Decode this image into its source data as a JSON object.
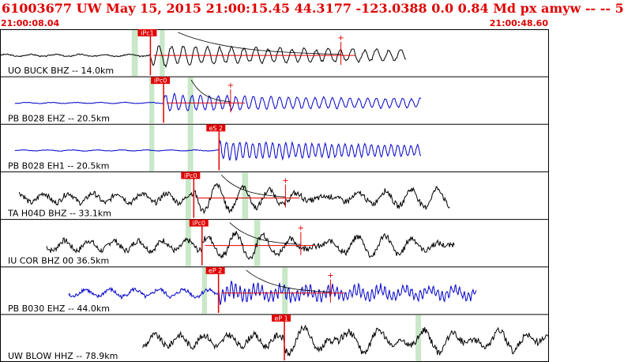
{
  "header": {
    "title": "61003677 UW May 15, 2015 21:00:15.45    44.3177 -123.0388  0.0 0.84 Md px amyw -- --   5",
    "time_left": "21:00:08.04",
    "time_right": "21:00:48.60"
  },
  "colors": {
    "text_red": "#e00000",
    "pick_red": "#e00000",
    "trace_black": "#000000",
    "trace_blue": "#0000cc",
    "window_green": "#c8e8c8"
  },
  "traces": [
    {
      "label": "UO BUCK BHZ -- 14.0km",
      "color": "#000000",
      "pick_label": "iPc1",
      "pick_t": 0.274,
      "green_windows": [
        [
          0.24,
          0.251
        ],
        [
          0.291,
          0.3
        ]
      ],
      "noise_amp": 0.06,
      "signal_amp": 0.42,
      "signal_period": 0.022,
      "coda_pick_t": 0.621,
      "start_t": 0.0,
      "end_t": 0.74
    },
    {
      "label": "PB B028 EHZ -- 20.5km",
      "color": "#0000cc",
      "pick_label": "iPc0",
      "pick_t": 0.298,
      "green_windows": [
        [
          0.272,
          0.281
        ],
        [
          0.342,
          0.352
        ]
      ],
      "noise_amp": 0.03,
      "signal_amp": 0.35,
      "signal_period": 0.016,
      "coda_pick_t": 0.42,
      "start_t": 0.027,
      "end_t": 0.768
    },
    {
      "label": "PB B028 EH1 -- 20.5km",
      "color": "#0000cc",
      "pick_label": "eS 2",
      "pick_t": 0.399,
      "green_windows": [
        [
          0.272,
          0.281
        ],
        [
          0.342,
          0.352
        ]
      ],
      "noise_amp": 0.03,
      "signal_amp": 0.38,
      "signal_period": 0.012,
      "coda_pick_t": null,
      "start_t": 0.027,
      "end_t": 0.768
    },
    {
      "label": "TA H04D BHZ -- 33.1km",
      "color": "#000000",
      "pick_label": "iPc0",
      "pick_t": 0.353,
      "green_windows": [
        [
          0.338,
          0.348
        ],
        [
          0.441,
          0.452
        ]
      ],
      "noise_amp": 0.28,
      "signal_amp": 0.38,
      "signal_period": 0.05,
      "coda_pick_t": 0.52,
      "start_t": 0.035,
      "end_t": 0.82
    },
    {
      "label": "IU COR BHZ 00 36.5km",
      "color": "#000000",
      "pick_label": "iPc0",
      "pick_t": 0.368,
      "green_windows": [
        [
          0.338,
          0.348
        ],
        [
          0.463,
          0.474
        ]
      ],
      "noise_amp": 0.3,
      "signal_amp": 0.36,
      "signal_period": 0.055,
      "coda_pick_t": 0.548,
      "start_t": 0.085,
      "end_t": 0.828
    },
    {
      "label": "PB B030 EHZ -- 44.0km",
      "color": "#0000cc",
      "pick_label": "eP 2",
      "pick_t": 0.398,
      "green_windows": [
        [
          0.368,
          0.377
        ],
        [
          0.514,
          0.524
        ]
      ],
      "noise_amp": 0.22,
      "signal_amp": 0.3,
      "signal_period": 0.008,
      "coda_pick_t": 0.602,
      "start_t": 0.125,
      "end_t": 0.868
    },
    {
      "label": "UW BLOW HHZ -- 78.9km",
      "color": "#000000",
      "pick_label": "eP 1",
      "pick_t": 0.518,
      "green_windows": [
        [
          0.757,
          0.767
        ]
      ],
      "noise_amp": 0.34,
      "signal_amp": 0.38,
      "signal_period": 0.07,
      "coda_pick_t": null,
      "start_t": 0.26,
      "end_t": 1.0
    }
  ]
}
